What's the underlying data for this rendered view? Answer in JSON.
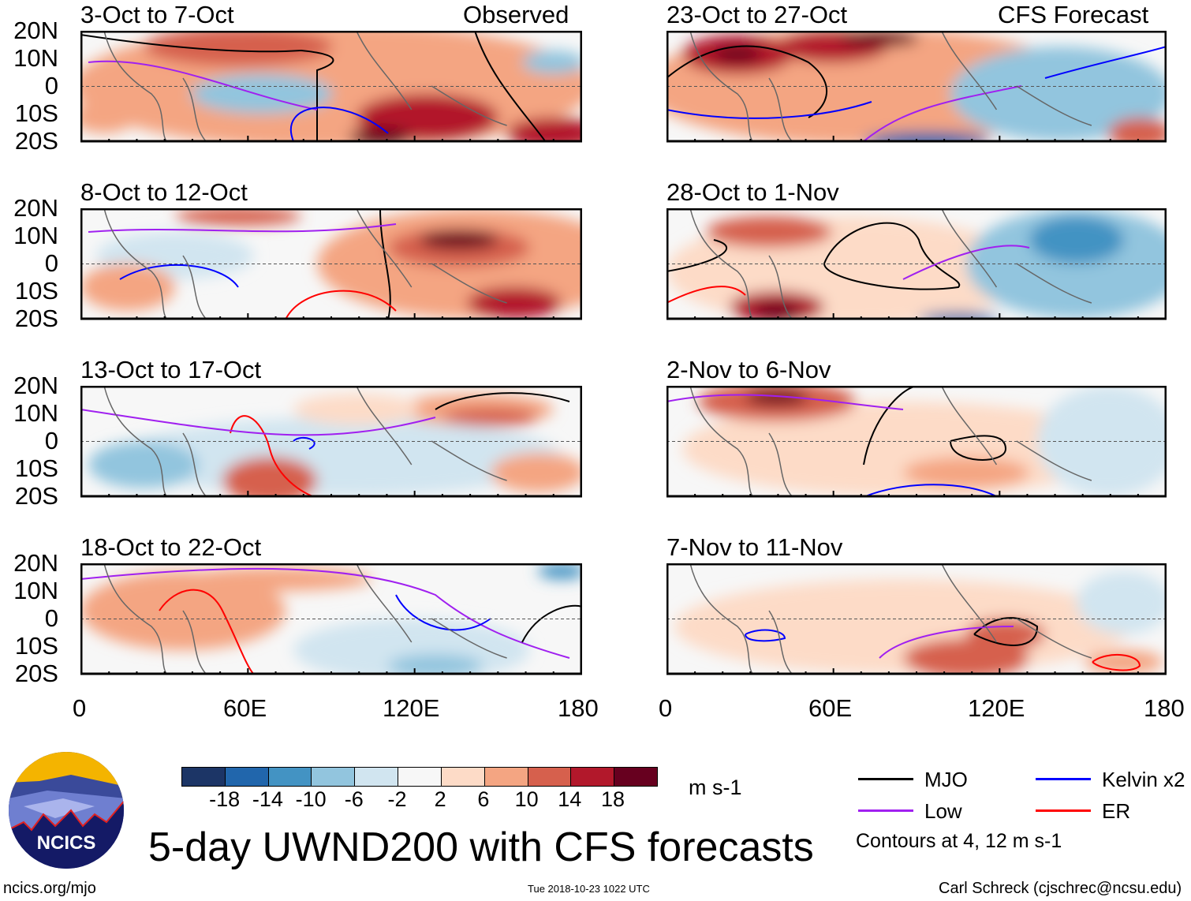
{
  "left_column": {
    "header_right": "Observed",
    "panels": [
      {
        "title": "3-Oct to 7-Oct"
      },
      {
        "title": "8-Oct to 12-Oct"
      },
      {
        "title": "13-Oct to 17-Oct"
      },
      {
        "title": "18-Oct to 22-Oct"
      }
    ]
  },
  "right_column": {
    "header_right": "CFS Forecast",
    "panels": [
      {
        "title": "23-Oct to 27-Oct"
      },
      {
        "title": "28-Oct to 1-Nov"
      },
      {
        "title": "2-Nov to 6-Nov"
      },
      {
        "title": "7-Nov to 11-Nov"
      }
    ]
  },
  "lat_labels": [
    "20N",
    "10N",
    "0",
    "10S",
    "20S"
  ],
  "lon_labels": [
    "0",
    "60E",
    "120E",
    "180"
  ],
  "colorbar": {
    "labels": [
      "-18",
      "-14",
      "-10",
      "-6",
      "-2",
      "2",
      "6",
      "10",
      "14",
      "18"
    ],
    "units": "m s-1",
    "colors": [
      "#1c3566",
      "#2166ac",
      "#4393c3",
      "#92c5de",
      "#d1e5f0",
      "#f7f7f7",
      "#fddbc7",
      "#f4a582",
      "#d6604d",
      "#b2182b",
      "#67001f"
    ]
  },
  "legend": {
    "items": [
      {
        "label": "MJO",
        "color": "#000000"
      },
      {
        "label": "Kelvin x2",
        "color": "#0000ff"
      },
      {
        "label": "Low",
        "color": "#a020f0"
      },
      {
        "label": "ER",
        "color": "#ff0000"
      }
    ],
    "note": "Contours at 4, 12 m s-1"
  },
  "logo_text": "NCICS",
  "title": "5-day UWND200 with CFS forecasts",
  "footer": {
    "url": "ncics.org/mjo",
    "timestamp": "Tue 2018-10-23 1022 UTC",
    "author": "Carl Schreck (cjschrec@ncsu.edu)"
  }
}
